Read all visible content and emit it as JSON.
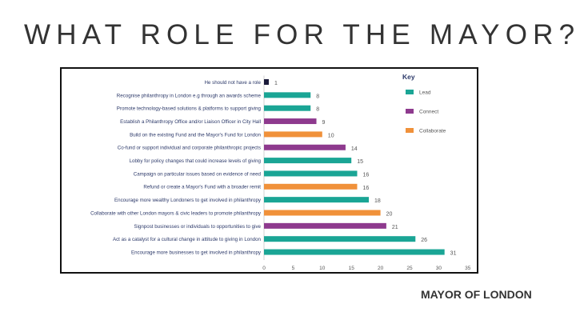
{
  "slide": {
    "title": "WHAT ROLE FOR THE MAYOR?",
    "brand": "MAYOR OF LONDON"
  },
  "chart_data": {
    "type": "bar",
    "orientation": "horizontal",
    "title": "",
    "xlabel": "",
    "ylabel": "",
    "xlim": [
      0,
      35
    ],
    "x_ticks": [
      "0",
      "5",
      "10",
      "15",
      "20",
      "25",
      "30",
      "35"
    ],
    "grid": false,
    "legend": {
      "title": "Key",
      "position": "top-right",
      "entries": [
        {
          "key": "lead",
          "label": "Lead",
          "color": "#1aa595"
        },
        {
          "key": "connect",
          "label": "Connect",
          "color": "#8e3a8e"
        },
        {
          "key": "collaborate",
          "label": "Collaborate",
          "color": "#f0913a"
        }
      ]
    },
    "other_color": "#1a1a3a",
    "categories": [
      "He should not have a role",
      "Recognise philanthropy in London e.g through an awards scheme",
      "Promote technology-based solutions & platforms to support giving",
      "Establish a Philanthropy Office and/or Liaison Officer in City Hall",
      "Build on the existing Fund and the Mayor's Fund for London",
      "Co-fund or support individual and corporate philanthropic projects",
      "Lobby for policy changes that could increase levels of giving",
      "Campaign on particular issues based on evidence of need",
      "Refund or create a Mayor's Fund with a broader remit",
      "Encourage more wealthy Londoners to get involved in philanthropy",
      "Collaborate with other London mayors & civic leaders to promote philanthropy",
      "Signpost businesses or individuals to opportunities to give",
      "Act as a catalyst for a cultural change in attitude to giving in London",
      "Encourage more businesses to get involved in philanthropy"
    ],
    "values": [
      1,
      8,
      8,
      9,
      10,
      14,
      15,
      16,
      16,
      18,
      20,
      21,
      26,
      31
    ],
    "value_labels": [
      "1",
      "8",
      "8",
      "9",
      "10",
      "14",
      "15",
      "16",
      "16",
      "18",
      "20",
      "21",
      "26",
      "31"
    ],
    "groups": [
      "other",
      "lead",
      "lead",
      "connect",
      "collaborate",
      "connect",
      "lead",
      "lead",
      "collaborate",
      "lead",
      "collaborate",
      "connect",
      "lead",
      "lead"
    ]
  }
}
